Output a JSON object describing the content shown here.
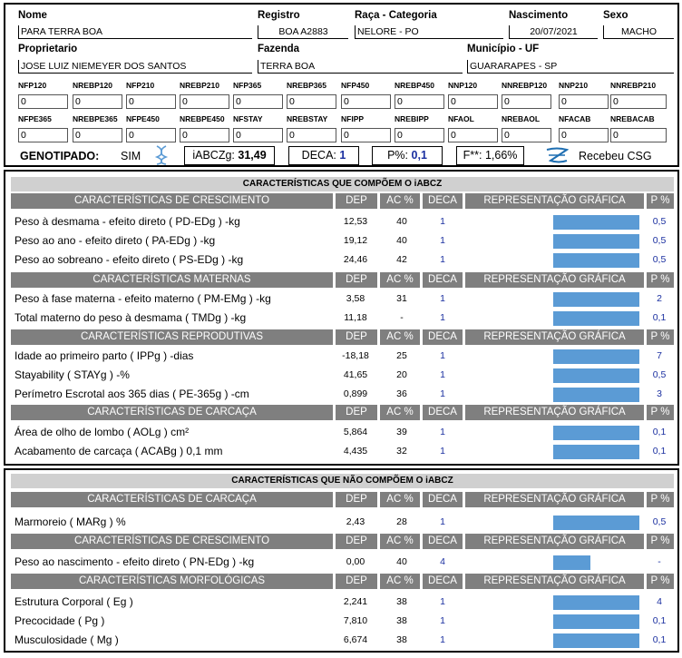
{
  "header": {
    "labels": {
      "nome": "Nome",
      "registro": "Registro",
      "raca": "Raça - Categoria",
      "nascimento": "Nascimento",
      "sexo": "Sexo",
      "proprietario": "Proprietario",
      "fazenda": "Fazenda",
      "municipio": "Município - UF"
    },
    "values": {
      "nome": "PARA TERRA BOA",
      "registro": "BOA A2883",
      "raca": "NELORE - PO",
      "nascimento": "20/07/2021",
      "sexo": "MACHO",
      "proprietario": "JOSE LUIZ NIEMEYER DOS SANTOS",
      "fazenda": "TERRA BOA",
      "municipio": "GUARARAPES - SP"
    }
  },
  "dep_grid": [
    [
      {
        "label": "NFP120",
        "value": "0"
      },
      {
        "label": "NREBP120",
        "value": "0"
      },
      {
        "label": "NFP210",
        "value": "0"
      },
      {
        "label": "NREBP210",
        "value": "0"
      },
      {
        "label": "NFP365",
        "value": "0"
      },
      {
        "label": "NREBP365",
        "value": "0"
      },
      {
        "label": "NFP450",
        "value": "0"
      },
      {
        "label": "NREBP450",
        "value": "0"
      },
      {
        "label": "NNP120",
        "value": "0"
      },
      {
        "label": "NNREBP120",
        "value": "0"
      },
      {
        "label": "NNP210",
        "value": "0"
      },
      {
        "label": "NNREBP210",
        "value": "0"
      }
    ],
    [
      {
        "label": "NFPE365",
        "value": "0"
      },
      {
        "label": "NREBPE365",
        "value": "0"
      },
      {
        "label": "NFPE450",
        "value": "0"
      },
      {
        "label": "NREBPE450",
        "value": "0"
      },
      {
        "label": "NFSTAY",
        "value": "0"
      },
      {
        "label": "NREBSTAY",
        "value": "0"
      },
      {
        "label": "NFIPP",
        "value": "0"
      },
      {
        "label": "NREBIPP",
        "value": "0"
      },
      {
        "label": "NFAOL",
        "value": "0"
      },
      {
        "label": "NREBAOL",
        "value": "0"
      },
      {
        "label": "NFACAB",
        "value": "0"
      },
      {
        "label": "NREBACAB",
        "value": "0"
      }
    ]
  ],
  "genotipado": {
    "label": "GENOTIPADO:",
    "value": "SIM",
    "iabcz_label": "iABCZg:",
    "iabcz_value": "31,49",
    "deca_label": "DECA:",
    "deca_value": "1",
    "p_label": "P%:",
    "p_value": "0,1",
    "f_label": "F**:",
    "f_value": "1,66%",
    "csg_label": "Recebeu CSG",
    "dna_icon": "dna-icon",
    "csg_icon": "csg-logo-icon"
  },
  "col_headers": {
    "dep": "DEP",
    "ac": "AC %",
    "deca": "DECA",
    "graph": "REPRESENTAÇÃO GRÁFICA",
    "p": "P %"
  },
  "bar_color": "#5b9bd5",
  "header_color": "#7f7f7f",
  "sections": [
    {
      "title": "CARACTERÍSTICAS QUE COMPÕEM O iABCZ",
      "groups": [
        {
          "name": "CARACTERÍSTICAS DE CRESCIMENTO",
          "rows": [
            {
              "name": "Peso à desmama - efeito direto ( PD-EDg ) -kg",
              "dep": "12,53",
              "ac": "40",
              "deca": "1",
              "p": "0,5",
              "bar_fraction": 1.0
            },
            {
              "name": "Peso ao ano - efeito direto ( PA-EDg ) -kg",
              "dep": "19,12",
              "ac": "40",
              "deca": "1",
              "p": "0,5",
              "bar_fraction": 1.0
            },
            {
              "name": "Peso ao sobreano - efeito direto ( PS-EDg ) -kg",
              "dep": "24,46",
              "ac": "42",
              "deca": "1",
              "p": "0,5",
              "bar_fraction": 1.0
            }
          ]
        },
        {
          "name": "CARACTERÍSTICAS MATERNAS",
          "rows": [
            {
              "name": "Peso à fase materna - efeito materno ( PM-EMg ) -kg",
              "dep": "3,58",
              "ac": "31",
              "deca": "1",
              "p": "2",
              "bar_fraction": 1.0
            },
            {
              "name": "Total materno do peso à desmama ( TMDg ) -kg",
              "dep": "11,18",
              "ac": "-",
              "deca": "1",
              "p": "0,1",
              "bar_fraction": 1.0
            }
          ]
        },
        {
          "name": "CARACTERÍSTICAS REPRODUTIVAS",
          "rows": [
            {
              "name": "Idade ao primeiro parto ( IPPg ) -dias",
              "dep": "-18,18",
              "ac": "25",
              "deca": "1",
              "p": "7",
              "bar_fraction": 1.0
            },
            {
              "name": "Stayability ( STAYg ) -%",
              "dep": "41,65",
              "ac": "20",
              "deca": "1",
              "p": "0,5",
              "bar_fraction": 1.0
            },
            {
              "name": "Perímetro Escrotal aos 365 dias ( PE-365g ) -cm",
              "dep": "0,899",
              "ac": "36",
              "deca": "1",
              "p": "3",
              "bar_fraction": 1.0
            }
          ]
        },
        {
          "name": "CARACTERÍSTICAS DE CARCAÇA",
          "rows": [
            {
              "name": "Área de olho de lombo ( AOLg ) cm²",
              "dep": "5,864",
              "ac": "39",
              "deca": "1",
              "p": "0,1",
              "bar_fraction": 1.0
            },
            {
              "name": "Acabamento de carcaça ( ACABg ) 0,1 mm",
              "dep": "4,435",
              "ac": "32",
              "deca": "1",
              "p": "0,1",
              "bar_fraction": 1.0
            }
          ]
        }
      ]
    },
    {
      "title": "CARACTERÍSTICAS QUE NÃO COMPÕEM O iABCZ",
      "groups": [
        {
          "name": "CARACTERÍSTICAS DE CARCAÇA",
          "rows": [
            {
              "name": "Marmoreio ( MARg ) %",
              "dep": "2,43",
              "ac": "28",
              "deca": "1",
              "p": "0,5",
              "bar_fraction": 1.0
            }
          ]
        },
        {
          "name": "CARACTERÍSTICAS DE CRESCIMENTO",
          "rows": [
            {
              "name": "Peso ao nascimento - efeito direto ( PN-EDg ) -kg",
              "dep": "0,00",
              "ac": "40",
              "deca": "4",
              "p": "-",
              "bar_fraction": 0.43
            }
          ]
        },
        {
          "name": "CARACTERÍSTICAS MORFOLÓGICAS",
          "rows": [
            {
              "name": "Estrutura Corporal ( Eg )",
              "dep": "2,241",
              "ac": "38",
              "deca": "1",
              "p": "4",
              "bar_fraction": 1.0
            },
            {
              "name": "Precocidade ( Pg )",
              "dep": "7,810",
              "ac": "38",
              "deca": "1",
              "p": "0,1",
              "bar_fraction": 1.0
            },
            {
              "name": "Musculosidade ( Mg )",
              "dep": "6,674",
              "ac": "38",
              "deca": "1",
              "p": "0,1",
              "bar_fraction": 1.0
            }
          ]
        }
      ]
    }
  ]
}
